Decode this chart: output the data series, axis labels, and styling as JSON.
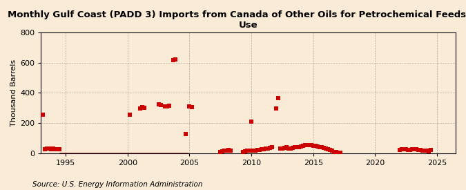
{
  "title": "Monthly Gulf Coast (PADD 3) Imports from Canada of Other Oils for Petrochemical Feedstock\nUse",
  "ylabel": "Thousand Barrels",
  "source": "Source: U.S. Energy Information Administration",
  "background_color": "#faebd7",
  "marker_color": "#cc0000",
  "line_color": "#990000",
  "xlim": [
    1993.0,
    2026.5
  ],
  "ylim": [
    0,
    800
  ],
  "yticks": [
    0,
    200,
    400,
    600,
    800
  ],
  "xticks": [
    1995,
    2000,
    2005,
    2010,
    2015,
    2020,
    2025
  ],
  "title_fontsize": 9.5,
  "axis_fontsize": 8,
  "source_fontsize": 7.5,
  "marker_size": 5,
  "scatter_points": [
    [
      1993.17,
      255
    ],
    [
      1993.33,
      25
    ],
    [
      1993.5,
      30
    ],
    [
      1993.67,
      30
    ],
    [
      1993.83,
      28
    ],
    [
      1994.0,
      30
    ],
    [
      1994.17,
      28
    ],
    [
      1994.33,
      25
    ],
    [
      1994.5,
      25
    ],
    [
      2000.17,
      255
    ],
    [
      2001.0,
      295
    ],
    [
      2001.17,
      305
    ],
    [
      2001.33,
      300
    ],
    [
      2002.5,
      325
    ],
    [
      2002.67,
      320
    ],
    [
      2003.0,
      310
    ],
    [
      2003.17,
      310
    ],
    [
      2003.33,
      315
    ],
    [
      2003.67,
      615
    ],
    [
      2003.83,
      620
    ],
    [
      2004.67,
      125
    ],
    [
      2005.0,
      310
    ],
    [
      2005.17,
      305
    ],
    [
      2007.5,
      10
    ],
    [
      2007.67,
      12
    ],
    [
      2007.83,
      15
    ],
    [
      2008.0,
      18
    ],
    [
      2008.17,
      20
    ],
    [
      2008.33,
      18
    ],
    [
      2009.33,
      10
    ],
    [
      2009.5,
      12
    ],
    [
      2009.67,
      15
    ],
    [
      2009.83,
      18
    ],
    [
      2010.0,
      210
    ],
    [
      2010.17,
      15
    ],
    [
      2010.33,
      18
    ],
    [
      2010.5,
      20
    ],
    [
      2010.67,
      22
    ],
    [
      2010.83,
      25
    ],
    [
      2011.0,
      28
    ],
    [
      2011.17,
      30
    ],
    [
      2011.33,
      32
    ],
    [
      2011.5,
      35
    ],
    [
      2011.67,
      38
    ],
    [
      2012.0,
      295
    ],
    [
      2012.17,
      365
    ],
    [
      2012.33,
      30
    ],
    [
      2012.5,
      32
    ],
    [
      2012.67,
      35
    ],
    [
      2012.83,
      38
    ],
    [
      2013.0,
      30
    ],
    [
      2013.17,
      32
    ],
    [
      2013.33,
      35
    ],
    [
      2013.5,
      38
    ],
    [
      2013.67,
      40
    ],
    [
      2013.83,
      42
    ],
    [
      2014.0,
      45
    ],
    [
      2014.17,
      50
    ],
    [
      2014.33,
      52
    ],
    [
      2014.5,
      55
    ],
    [
      2014.67,
      55
    ],
    [
      2014.83,
      52
    ],
    [
      2015.0,
      50
    ],
    [
      2015.17,
      48
    ],
    [
      2015.33,
      45
    ],
    [
      2015.5,
      42
    ],
    [
      2015.67,
      38
    ],
    [
      2015.83,
      35
    ],
    [
      2016.0,
      30
    ],
    [
      2016.17,
      25
    ],
    [
      2016.33,
      20
    ],
    [
      2016.5,
      15
    ],
    [
      2016.67,
      10
    ],
    [
      2016.83,
      8
    ],
    [
      2017.0,
      5
    ],
    [
      2017.17,
      5
    ],
    [
      2022.0,
      20
    ],
    [
      2022.17,
      25
    ],
    [
      2022.33,
      28
    ],
    [
      2022.5,
      25
    ],
    [
      2022.67,
      22
    ],
    [
      2022.83,
      20
    ],
    [
      2023.0,
      25
    ],
    [
      2023.17,
      28
    ],
    [
      2023.33,
      25
    ],
    [
      2023.5,
      22
    ],
    [
      2023.67,
      20
    ],
    [
      2023.83,
      18
    ],
    [
      2024.0,
      15
    ],
    [
      2024.17,
      15
    ],
    [
      2024.33,
      12
    ],
    [
      2024.5,
      20
    ]
  ],
  "line_points": [
    [
      1994.5,
      0
    ],
    [
      1994.58,
      0
    ],
    [
      1994.67,
      0
    ],
    [
      1994.75,
      0
    ],
    [
      1994.83,
      0
    ],
    [
      1994.92,
      0
    ],
    [
      1995.0,
      0
    ],
    [
      1995.08,
      0
    ],
    [
      1995.17,
      0
    ],
    [
      1995.25,
      0
    ],
    [
      1995.33,
      0
    ],
    [
      1995.42,
      0
    ],
    [
      1995.5,
      0
    ],
    [
      1995.58,
      0
    ],
    [
      1995.67,
      0
    ],
    [
      1995.75,
      0
    ],
    [
      1995.83,
      0
    ],
    [
      1995.92,
      0
    ],
    [
      1996.0,
      0
    ],
    [
      1996.08,
      0
    ],
    [
      1996.17,
      0
    ],
    [
      1996.25,
      0
    ],
    [
      1996.33,
      0
    ],
    [
      1996.42,
      0
    ],
    [
      1996.5,
      0
    ],
    [
      1996.58,
      0
    ],
    [
      1996.67,
      0
    ],
    [
      1996.75,
      0
    ],
    [
      1996.83,
      0
    ],
    [
      1996.92,
      0
    ],
    [
      1997.0,
      0
    ],
    [
      1997.08,
      0
    ],
    [
      1997.17,
      0
    ],
    [
      1997.25,
      0
    ],
    [
      1997.33,
      0
    ],
    [
      1997.42,
      0
    ],
    [
      1997.5,
      0
    ],
    [
      1997.58,
      0
    ],
    [
      1997.67,
      0
    ],
    [
      1997.75,
      0
    ],
    [
      1997.83,
      0
    ],
    [
      1997.92,
      0
    ],
    [
      1998.0,
      0
    ],
    [
      1998.08,
      0
    ],
    [
      1998.17,
      0
    ],
    [
      1998.25,
      0
    ],
    [
      1998.33,
      0
    ],
    [
      1998.42,
      0
    ],
    [
      1998.5,
      0
    ],
    [
      1998.58,
      0
    ],
    [
      1998.67,
      0
    ],
    [
      1998.75,
      0
    ],
    [
      1998.83,
      0
    ],
    [
      1998.92,
      0
    ],
    [
      1999.0,
      0
    ],
    [
      1999.08,
      0
    ],
    [
      1999.17,
      0
    ],
    [
      1999.25,
      0
    ],
    [
      1999.33,
      0
    ],
    [
      1999.42,
      0
    ],
    [
      1999.5,
      0
    ],
    [
      1999.58,
      0
    ],
    [
      1999.67,
      0
    ],
    [
      1999.75,
      0
    ],
    [
      1999.83,
      0
    ],
    [
      1999.92,
      0
    ],
    [
      2000.0,
      0
    ],
    [
      2000.08,
      0
    ],
    [
      2000.25,
      0
    ],
    [
      2000.33,
      0
    ],
    [
      2000.42,
      0
    ],
    [
      2000.5,
      0
    ],
    [
      2000.58,
      0
    ],
    [
      2000.67,
      0
    ],
    [
      2000.75,
      0
    ],
    [
      2000.83,
      0
    ],
    [
      2000.92,
      0
    ],
    [
      2001.0,
      0
    ],
    [
      2001.42,
      0
    ],
    [
      2001.5,
      0
    ],
    [
      2001.58,
      0
    ],
    [
      2001.67,
      0
    ],
    [
      2001.75,
      0
    ],
    [
      2001.83,
      0
    ],
    [
      2001.92,
      0
    ],
    [
      2002.0,
      0
    ],
    [
      2002.08,
      0
    ],
    [
      2002.17,
      0
    ],
    [
      2002.25,
      0
    ],
    [
      2002.33,
      0
    ],
    [
      2002.42,
      0
    ],
    [
      2002.75,
      0
    ],
    [
      2002.83,
      0
    ],
    [
      2002.92,
      0
    ],
    [
      2003.25,
      0
    ],
    [
      2003.42,
      0
    ],
    [
      2003.5,
      0
    ],
    [
      2003.58,
      0
    ],
    [
      2003.92,
      0
    ],
    [
      2004.0,
      0
    ],
    [
      2004.08,
      0
    ],
    [
      2004.17,
      0
    ],
    [
      2004.25,
      0
    ],
    [
      2004.33,
      0
    ],
    [
      2004.42,
      0
    ],
    [
      2004.5,
      0
    ],
    [
      2004.58,
      0
    ],
    [
      2004.75,
      0
    ],
    [
      2004.83,
      0
    ],
    [
      2004.92,
      0
    ]
  ]
}
